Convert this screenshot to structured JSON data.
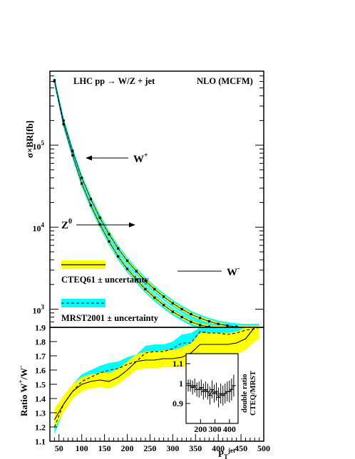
{
  "chart_data": [
    {
      "type": "line",
      "scale": "log-y",
      "title_left": "LHC   pp → W/Z + jet",
      "title_right": "NLO (MCFM)",
      "ylabel": "σ×BR[fb]",
      "xlim": [
        30,
        500
      ],
      "ylim": [
        600,
        800000
      ],
      "yticks": [
        {
          "v": 1000,
          "label": "10"
        },
        {
          "v": 10000,
          "label": "10"
        },
        {
          "v": 100000,
          "label": "10"
        }
      ],
      "ytick_exponents": [
        "3",
        "4",
        "5"
      ],
      "annotations": {
        "wplus": "W",
        "wplus_sup": "+",
        "zzero": "Z",
        "zzero_sup": "0",
        "wminus": "W",
        "wminus_sup": "-"
      },
      "legend": [
        {
          "label": "CTEQ61 ± uncertainty",
          "band_color": "#ffff00",
          "line_style": "solid"
        },
        {
          "label": "MRST2001 ± uncertainty",
          "band_color": "#00ffff",
          "line_style": "dashed"
        }
      ],
      "x": [
        40,
        60,
        80,
        100,
        120,
        140,
        160,
        180,
        200,
        220,
        240,
        260,
        280,
        300,
        320,
        340,
        360,
        380,
        400,
        420,
        440,
        460,
        480,
        490
      ],
      "series": [
        {
          "name": "W+",
          "values": [
            620000,
            200000,
            85000,
            40000,
            22000,
            13000,
            8200,
            5500,
            3900,
            2900,
            2200,
            1750,
            1420,
            1180,
            1000,
            870,
            780,
            710,
            660,
            630,
            610,
            600,
            600,
            600
          ],
          "rel_unc": 0.1
        },
        {
          "name": "W-",
          "values": [
            600000,
            180000,
            75000,
            34000,
            18500,
            10800,
            6700,
            4400,
            3100,
            2300,
            1750,
            1380,
            1120,
            930,
            800,
            700,
            640,
            610,
            600,
            600,
            600,
            600,
            600,
            600
          ],
          "rel_unc": 0.1
        }
      ]
    },
    {
      "type": "line",
      "xlabel": "P",
      "xlabel_sub": "T",
      "xlabel_sup": "jet",
      "ylabel": "Ratio W",
      "ylabel_sup1": "+",
      "ylabel_mid": "/W",
      "ylabel_sup2": "-",
      "xlim": [
        30,
        500
      ],
      "ylim": [
        1.1,
        1.9
      ],
      "xticks": [
        50,
        100,
        150,
        200,
        250,
        300,
        350,
        400,
        450,
        500
      ],
      "yticks": [
        1.1,
        1.2,
        1.3,
        1.4,
        1.5,
        1.6,
        1.7,
        1.8,
        1.9
      ],
      "x": [
        40,
        60,
        80,
        100,
        120,
        140,
        160,
        180,
        200,
        220,
        240,
        260,
        280,
        300,
        320,
        340,
        360,
        380,
        400,
        420,
        440,
        460,
        480,
        490
      ],
      "series": [
        {
          "name": "CTEQ61",
          "values": [
            1.25,
            1.36,
            1.45,
            1.5,
            1.52,
            1.53,
            1.52,
            1.55,
            1.6,
            1.66,
            1.67,
            1.67,
            1.68,
            1.68,
            1.69,
            1.72,
            1.78,
            1.78,
            1.78,
            1.78,
            1.79,
            1.82,
            1.9,
            1.9
          ],
          "band_lo": [
            1.19,
            1.3,
            1.4,
            1.45,
            1.47,
            1.48,
            1.47,
            1.5,
            1.55,
            1.6,
            1.61,
            1.61,
            1.62,
            1.62,
            1.62,
            1.64,
            1.69,
            1.7,
            1.7,
            1.7,
            1.71,
            1.74,
            1.8,
            1.82
          ],
          "band_hi": [
            1.33,
            1.42,
            1.5,
            1.55,
            1.57,
            1.58,
            1.58,
            1.61,
            1.66,
            1.71,
            1.73,
            1.73,
            1.74,
            1.74,
            1.76,
            1.79,
            1.86,
            1.86,
            1.86,
            1.86,
            1.87,
            1.9,
            1.9,
            1.9
          ]
        },
        {
          "name": "MRST2001",
          "values": [
            1.2,
            1.36,
            1.45,
            1.52,
            1.55,
            1.58,
            1.6,
            1.61,
            1.64,
            1.66,
            1.72,
            1.73,
            1.73,
            1.75,
            1.79,
            1.79,
            1.87,
            1.86,
            1.86,
            1.85,
            1.86,
            1.88,
            1.89,
            1.9
          ],
          "band_lo": [
            1.15,
            1.31,
            1.41,
            1.48,
            1.51,
            1.54,
            1.56,
            1.57,
            1.6,
            1.62,
            1.67,
            1.68,
            1.68,
            1.7,
            1.73,
            1.72,
            1.8,
            1.8,
            1.8,
            1.79,
            1.8,
            1.82,
            1.83,
            1.85
          ],
          "band_hi": [
            1.25,
            1.41,
            1.5,
            1.57,
            1.6,
            1.63,
            1.65,
            1.66,
            1.69,
            1.71,
            1.77,
            1.78,
            1.78,
            1.8,
            1.85,
            1.86,
            1.9,
            1.9,
            1.9,
            1.9,
            1.9,
            1.9,
            1.9,
            1.9
          ]
        }
      ]
    },
    {
      "type": "scatter",
      "ylabel_line1": "double ratio",
      "ylabel_line2": "CTEQ/MRST",
      "xlim": [
        100,
        460
      ],
      "ylim": [
        0.8,
        1.15
      ],
      "xticks": [
        200,
        300,
        400
      ],
      "yticks": [
        0.9,
        1,
        1.1
      ],
      "points": [
        {
          "x": 115,
          "y": 0.99,
          "err": 0.03
        },
        {
          "x": 130,
          "y": 0.99,
          "err": 0.03
        },
        {
          "x": 145,
          "y": 0.98,
          "err": 0.035
        },
        {
          "x": 160,
          "y": 0.99,
          "err": 0.035
        },
        {
          "x": 175,
          "y": 0.97,
          "err": 0.035
        },
        {
          "x": 190,
          "y": 0.97,
          "err": 0.04
        },
        {
          "x": 205,
          "y": 0.98,
          "err": 0.04
        },
        {
          "x": 220,
          "y": 0.96,
          "err": 0.04
        },
        {
          "x": 235,
          "y": 0.97,
          "err": 0.04
        },
        {
          "x": 250,
          "y": 0.96,
          "err": 0.04
        },
        {
          "x": 265,
          "y": 0.94,
          "err": 0.045
        },
        {
          "x": 280,
          "y": 0.97,
          "err": 0.045
        },
        {
          "x": 295,
          "y": 0.95,
          "err": 0.045
        },
        {
          "x": 310,
          "y": 0.96,
          "err": 0.045
        },
        {
          "x": 325,
          "y": 0.93,
          "err": 0.05
        },
        {
          "x": 340,
          "y": 0.95,
          "err": 0.05
        },
        {
          "x": 355,
          "y": 0.94,
          "err": 0.05
        },
        {
          "x": 370,
          "y": 0.95,
          "err": 0.05
        },
        {
          "x": 385,
          "y": 0.96,
          "err": 0.05
        },
        {
          "x": 400,
          "y": 0.96,
          "err": 0.055
        },
        {
          "x": 415,
          "y": 0.97,
          "err": 0.055
        },
        {
          "x": 430,
          "y": 0.99,
          "err": 0.055
        }
      ]
    }
  ]
}
